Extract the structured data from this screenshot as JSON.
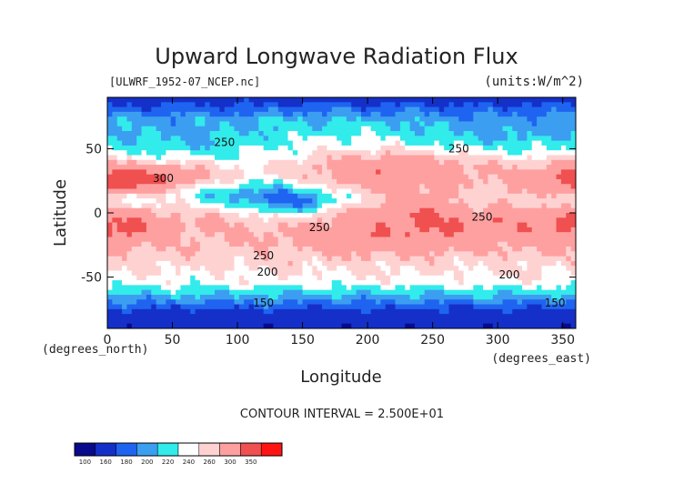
{
  "chart_data": {
    "type": "heatmap",
    "title": "Upward Longwave Radiation Flux",
    "file_label": "[ULWRF_1952-07_NCEP.nc]",
    "units_label": "(units:W/m^2)",
    "xlabel": "Longitude",
    "ylabel": "Latitude",
    "x_unit_label": "(degrees_east)",
    "y_unit_label": "(degrees_north)",
    "xlim": [
      0,
      360
    ],
    "ylim": [
      -90,
      90
    ],
    "x_ticks": [
      0,
      50,
      100,
      150,
      200,
      250,
      300,
      350
    ],
    "y_ticks": [
      -50,
      0,
      50
    ],
    "contour_interval_text": "CONTOUR INTERVAL = 2.500E+01",
    "contour_labels": [
      {
        "text": "250",
        "lon": 90,
        "lat": 52
      },
      {
        "text": "300",
        "lon": 43,
        "lat": 24
      },
      {
        "text": "250",
        "lon": 270,
        "lat": 47
      },
      {
        "text": "250",
        "lon": 163,
        "lat": -14
      },
      {
        "text": "250",
        "lon": 120,
        "lat": -36
      },
      {
        "text": "200",
        "lon": 123,
        "lat": -49
      },
      {
        "text": "250",
        "lon": 288,
        "lat": -6
      },
      {
        "text": "200",
        "lon": 309,
        "lat": -51
      },
      {
        "text": "150",
        "lon": 120,
        "lat": -73
      },
      {
        "text": "150",
        "lon": 344,
        "lat": -73
      }
    ],
    "color_levels": [
      100,
      160,
      180,
      200,
      220,
      240,
      260,
      300,
      350
    ],
    "colors": [
      "#0a0a8c",
      "#1430c8",
      "#1e64f0",
      "#3c9ef0",
      "#32ebeb",
      "#ffffff",
      "#ffd2d2",
      "#ffa0a0",
      "#f05050",
      "#ff1414"
    ]
  }
}
